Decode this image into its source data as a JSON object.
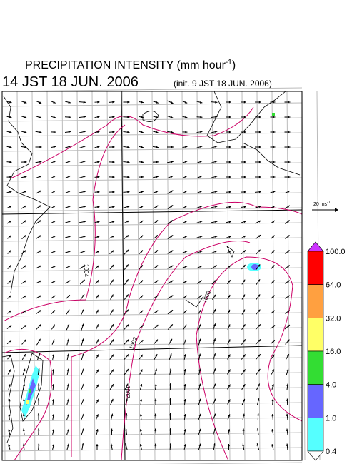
{
  "header": {
    "title": "PRECIPITATION INTENSITY (mm hour",
    "title_sup": "-1",
    "title_end": ")",
    "valid_time": "14 JST 18 JUN. 2006",
    "init_time": "(init. 9 JST 18 JUN. 2006)"
  },
  "wind_scale": {
    "label": "20 ms",
    "label_sup": "-1"
  },
  "contour_labels": [
    "1004",
    "1002",
    "1000",
    "1002"
  ],
  "colorbar": {
    "ticks": [
      {
        "value": 100,
        "label": "100.0"
      },
      {
        "value": 64,
        "label": "64.0"
      },
      {
        "value": 32,
        "label": "32.0"
      },
      {
        "value": 16,
        "label": "16.0"
      },
      {
        "value": 4,
        "label": "4.0"
      },
      {
        "value": 1,
        "label": "1.0"
      },
      {
        "value": 0.4,
        "label": "0.4"
      }
    ],
    "colors": [
      "#cc33ff",
      "#ff0000",
      "#ffa040",
      "#ffff66",
      "#33dd33",
      "#6666ff",
      "#55ffff",
      "#ffffff"
    ]
  }
}
